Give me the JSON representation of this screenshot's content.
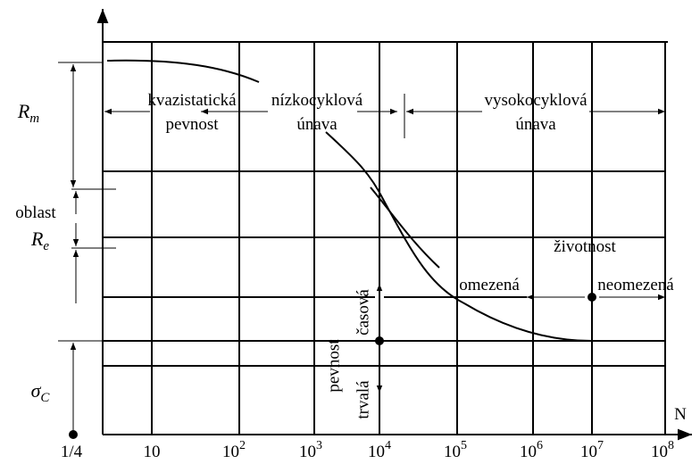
{
  "y_labels": {
    "rm": {
      "base": "R",
      "sub": "m"
    },
    "oblast": "oblast",
    "re": {
      "base": "R",
      "sub": "e"
    },
    "sigma": {
      "base": "σ",
      "sub": "C"
    }
  },
  "regions": {
    "quasi": [
      "kvazistatická",
      "pevnost"
    ],
    "low": [
      "nízkocyklová",
      "únava"
    ],
    "high": [
      "vysokocyklová",
      "únava"
    ]
  },
  "life": {
    "title": "životnost",
    "limited": "omezená",
    "unlimited": "neomezená"
  },
  "strength": {
    "title": "pevnost",
    "time": "časová",
    "permanent": "trvalá"
  },
  "x_axis": {
    "name": "N",
    "labels": [
      {
        "base": "1/4"
      },
      {
        "base": "10"
      },
      {
        "base": "10",
        "exp": "2"
      },
      {
        "base": "10",
        "exp": "3"
      },
      {
        "base": "10",
        "exp": "4"
      },
      {
        "base": "10",
        "exp": "5"
      },
      {
        "base": "10",
        "exp": "6"
      },
      {
        "base": "10",
        "exp": "7"
      },
      {
        "base": "10",
        "exp": "8"
      }
    ]
  }
}
